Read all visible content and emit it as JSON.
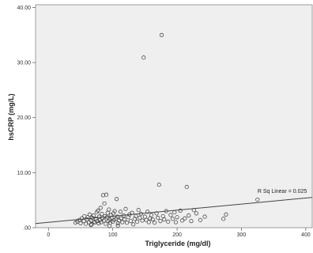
{
  "chart_data": {
    "type": "scatter",
    "xlabel": "Triglyceride (mg/dl)",
    "ylabel": "hsCRP (mg/L)",
    "xlim": [
      -20,
      410
    ],
    "ylim": [
      0,
      40.5
    ],
    "x_ticks": [
      0,
      100,
      200,
      300,
      400
    ],
    "y_ticks": [
      0,
      10,
      20,
      30,
      40
    ],
    "y_tick_labels": [
      ".00",
      "10.00",
      "20.00",
      "30.00",
      "40.00"
    ],
    "x_tick_labels": [
      "0",
      "100",
      "200",
      "300",
      "400"
    ],
    "grid": false,
    "background": "#efefef",
    "marker": "open-circle",
    "fit_line": {
      "label": "R Sq Linear = 0.025",
      "x": [
        -20,
        410
      ],
      "y": [
        0.75,
        5.5
      ]
    },
    "series": [
      {
        "points": [
          [
            42,
            0.9
          ],
          [
            45,
            1.1
          ],
          [
            48,
            1.4
          ],
          [
            50,
            0.8
          ],
          [
            52,
            1.7
          ],
          [
            55,
            1.2
          ],
          [
            56,
            2.1
          ],
          [
            58,
            0.7
          ],
          [
            60,
            1.5
          ],
          [
            61,
            1.9
          ],
          [
            63,
            1.0
          ],
          [
            64,
            2.4
          ],
          [
            66,
            1.3
          ],
          [
            67,
            0.6
          ],
          [
            68,
            1.8
          ],
          [
            70,
            2.2
          ],
          [
            71,
            1.1
          ],
          [
            72,
            0.9
          ],
          [
            74,
            1.6
          ],
          [
            75,
            2.8
          ],
          [
            76,
            1.2
          ],
          [
            77,
            3.1
          ],
          [
            78,
            0.8
          ],
          [
            79,
            2.0
          ],
          [
            80,
            1.4
          ],
          [
            81,
            3.6
          ],
          [
            82,
            1.0
          ],
          [
            83,
            2.5
          ],
          [
            84,
            1.7
          ],
          [
            85,
            5.9
          ],
          [
            86,
            1.3
          ],
          [
            87,
            4.4
          ],
          [
            88,
            2.1
          ],
          [
            89,
            0.7
          ],
          [
            90,
            6.0
          ],
          [
            91,
            1.9
          ],
          [
            92,
            2.7
          ],
          [
            93,
            1.2
          ],
          [
            94,
            3.3
          ],
          [
            95,
            1.5
          ],
          [
            96,
            0.9
          ],
          [
            97,
            2.3
          ],
          [
            98,
            1.8
          ],
          [
            100,
            1.1
          ],
          [
            101,
            2.6
          ],
          [
            102,
            1.4
          ],
          [
            103,
            3.0
          ],
          [
            105,
            1.6
          ],
          [
            106,
            5.2
          ],
          [
            107,
            2.0
          ],
          [
            108,
            0.8
          ],
          [
            110,
            1.3
          ],
          [
            112,
            2.9
          ],
          [
            113,
            1.7
          ],
          [
            115,
            1.0
          ],
          [
            117,
            2.2
          ],
          [
            118,
            1.5
          ],
          [
            120,
            3.4
          ],
          [
            122,
            0.9
          ],
          [
            124,
            1.9
          ],
          [
            126,
            2.4
          ],
          [
            128,
            1.2
          ],
          [
            130,
            2.7
          ],
          [
            132,
            0.6
          ],
          [
            134,
            1.6
          ],
          [
            136,
            2.1
          ],
          [
            138,
            1.1
          ],
          [
            140,
            3.2
          ],
          [
            142,
            1.8
          ],
          [
            144,
            2.5
          ],
          [
            146,
            1.3
          ],
          [
            148,
            30.9
          ],
          [
            150,
            2.0
          ],
          [
            152,
            1.4
          ],
          [
            154,
            2.9
          ],
          [
            156,
            1.0
          ],
          [
            158,
            1.7
          ],
          [
            160,
            2.3
          ],
          [
            162,
            1.5
          ],
          [
            165,
            0.9
          ],
          [
            168,
            2.6
          ],
          [
            170,
            1.8
          ],
          [
            172,
            7.8
          ],
          [
            174,
            1.2
          ],
          [
            176,
            35.0
          ],
          [
            178,
            2.1
          ],
          [
            180,
            1.5
          ],
          [
            183,
            3.0
          ],
          [
            186,
            1.1
          ],
          [
            190,
            2.3
          ],
          [
            193,
            1.6
          ],
          [
            196,
            2.8
          ],
          [
            198,
            1.0
          ],
          [
            200,
            1.9
          ],
          [
            205,
            3.1
          ],
          [
            208,
            1.3
          ],
          [
            212,
            1.7
          ],
          [
            215,
            7.4
          ],
          [
            218,
            2.2
          ],
          [
            222,
            1.2
          ],
          [
            226,
            3.2
          ],
          [
            230,
            2.6
          ],
          [
            236,
            1.4
          ],
          [
            243,
            2.0
          ],
          [
            272,
            1.6
          ],
          [
            276,
            2.4
          ],
          [
            325,
            5.1
          ],
          [
            108,
            0.4
          ],
          [
            66,
            0.5
          ],
          [
            95,
            0.3
          ]
        ]
      }
    ]
  }
}
